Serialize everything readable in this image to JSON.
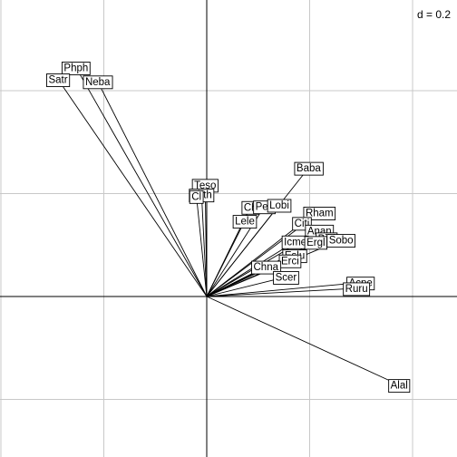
{
  "chart_data": {
    "type": "scatter",
    "subtype": "correlation-circle-arrows",
    "title": "",
    "xlabel": "",
    "ylabel": "",
    "scale_label": "d = 0.2",
    "grid": true,
    "origin_axes": true,
    "grid_step": 0.2,
    "xlim": [
      -0.4,
      0.48
    ],
    "ylim": [
      -0.3,
      0.58
    ],
    "points": [
      {
        "label": "Phph",
        "x": -0.254,
        "y": 0.445
      },
      {
        "label": "Satr",
        "x": -0.289,
        "y": 0.422
      },
      {
        "label": "Neba",
        "x": -0.212,
        "y": 0.418
      },
      {
        "label": "Baba",
        "x": 0.198,
        "y": 0.25
      },
      {
        "label": "Teso",
        "x": -0.003,
        "y": 0.217
      },
      {
        "label": "Thth",
        "x": -0.01,
        "y": 0.198
      },
      {
        "label": "Cl",
        "x": -0.02,
        "y": 0.195
      },
      {
        "label": "Ch",
        "x": 0.085,
        "y": 0.174
      },
      {
        "label": "Pefl",
        "x": 0.112,
        "y": 0.175
      },
      {
        "label": "Lobi",
        "x": 0.141,
        "y": 0.178
      },
      {
        "label": "Lele",
        "x": 0.074,
        "y": 0.147
      },
      {
        "label": "Rham",
        "x": 0.219,
        "y": 0.163
      },
      {
        "label": "Citi",
        "x": 0.185,
        "y": 0.143
      },
      {
        "label": "Anan",
        "x": 0.219,
        "y": 0.128
      },
      {
        "label": "Icme",
        "x": 0.172,
        "y": 0.107
      },
      {
        "label": "Bibi",
        "x": 0.233,
        "y": 0.113
      },
      {
        "label": "Ergl",
        "x": 0.212,
        "y": 0.106
      },
      {
        "label": "Sobo",
        "x": 0.261,
        "y": 0.11
      },
      {
        "label": "Eslu",
        "x": 0.171,
        "y": 0.08
      },
      {
        "label": "Erci",
        "x": 0.162,
        "y": 0.07
      },
      {
        "label": "Chna",
        "x": 0.115,
        "y": 0.058
      },
      {
        "label": "Scer",
        "x": 0.154,
        "y": 0.038
      },
      {
        "label": "Acpe",
        "x": 0.299,
        "y": 0.027
      },
      {
        "label": "Ruru",
        "x": 0.291,
        "y": 0.016
      },
      {
        "label": "Alal",
        "x": 0.374,
        "y": -0.172
      }
    ]
  }
}
